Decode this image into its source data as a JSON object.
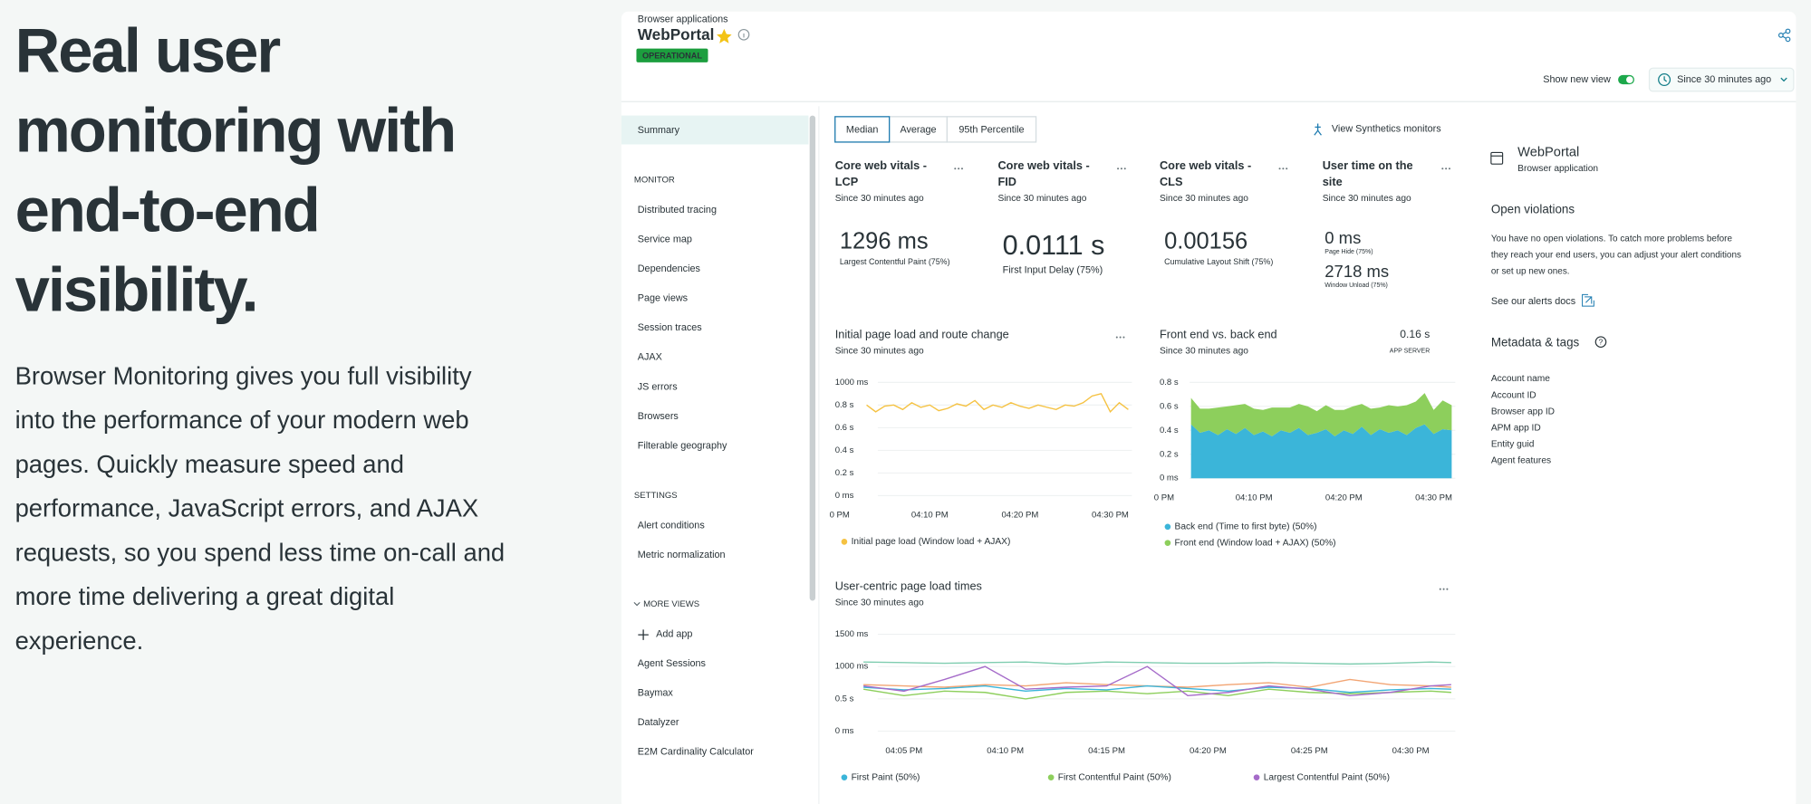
{
  "hero": {
    "title_lines": [
      "Real user",
      "monitoring with",
      "end-to-end",
      "visibility."
    ],
    "description_lines": [
      "Browser Monitoring gives you full visibility",
      "into the performance of your modern web",
      "pages. Quickly measure speed and",
      "performance, JavaScript errors, and AJAX",
      "requests, so you spend less time on-call and",
      "more time delivering a great digital",
      "experience."
    ]
  },
  "app": {
    "breadcrumb": "Browser applications",
    "name": "WebPortal",
    "status": "OPERATIONAL",
    "show_new_view": "Show new view",
    "time_range": "Since 30 minutes ago"
  },
  "sidebar": {
    "summary": "Summary",
    "sections": [
      {
        "title": "MONITOR",
        "items": [
          "Distributed tracing",
          "Service map",
          "Dependencies",
          "Page views",
          "Session traces",
          "AJAX",
          "JS errors",
          "Browsers",
          "Filterable geography"
        ]
      },
      {
        "title": "SETTINGS",
        "items": [
          "Alert conditions",
          "Metric normalization"
        ]
      },
      {
        "title": "MORE VIEWS",
        "items": [
          "Add app",
          "Agent Sessions",
          "Baymax",
          "Datalyzer",
          "E2M Cardinality Calculator"
        ]
      }
    ]
  },
  "tabs": [
    "Median",
    "Average",
    "95th Percentile"
  ],
  "synthetics_link": "View Synthetics monitors",
  "vitals": [
    {
      "title_lines": [
        "Core web vitals -",
        "LCP"
      ],
      "subtitle": "Since 30 minutes ago",
      "metrics": [
        {
          "value": "1296 ms",
          "caption": "Largest Contentful Paint (75%)"
        }
      ]
    },
    {
      "title_lines": [
        "Core web vitals -",
        "FID"
      ],
      "subtitle": "Since 30 minutes ago",
      "metrics": [
        {
          "value": "0.0111 s",
          "caption": "First Input Delay (75%)"
        }
      ]
    },
    {
      "title_lines": [
        "Core web vitals -",
        "CLS"
      ],
      "subtitle": "Since 30 minutes ago",
      "metrics": [
        {
          "value": "0.00156",
          "caption": "Cumulative Layout Shift (75%)"
        }
      ]
    },
    {
      "title_lines": [
        "User time on the",
        "site"
      ],
      "subtitle": "Since 30 minutes ago",
      "metrics": [
        {
          "value": "0 ms",
          "caption": "Page Hide (75%)"
        },
        {
          "value": "2718 ms",
          "caption": "Window Unload (75%)"
        }
      ]
    }
  ],
  "chart_data": [
    {
      "type": "line",
      "title": "Initial page load and route change",
      "subtitle": "Since 30 minutes ago",
      "xlim": [
        -0.5,
        32.4
      ],
      "ylim": [
        0,
        1
      ],
      "xticks": [
        {
          "value": 0,
          "label": "0 PM"
        },
        {
          "value": 10,
          "label": "04:10 PM"
        },
        {
          "value": 20,
          "label": "04:20 PM"
        },
        {
          "value": 30,
          "label": "04:30 PM"
        }
      ],
      "yticks": [
        {
          "value": 1,
          "label": "1000 ms"
        },
        {
          "value": 0.8,
          "label": "0.8 s"
        },
        {
          "value": 0.6,
          "label": "0.6 s"
        },
        {
          "value": 0.4,
          "label": "0.4 s"
        },
        {
          "value": 0.2,
          "label": "0.2 s"
        },
        {
          "value": 0,
          "label": "0 ms"
        }
      ],
      "x": [
        3,
        4,
        5,
        6,
        7,
        8,
        9,
        10,
        11,
        12,
        13,
        14,
        15,
        16,
        17,
        18,
        19,
        20,
        21,
        22,
        23,
        24,
        25,
        26,
        27,
        28,
        29,
        30,
        31,
        32
      ],
      "series": [
        {
          "name": "Initial page load (Window load + AJAX)",
          "color": "#f5c242",
          "values": [
            0.8,
            0.74,
            0.79,
            0.8,
            0.76,
            0.82,
            0.78,
            0.8,
            0.75,
            0.77,
            0.81,
            0.79,
            0.84,
            0.76,
            0.8,
            0.78,
            0.82,
            0.79,
            0.77,
            0.8,
            0.78,
            0.76,
            0.8,
            0.79,
            0.82,
            0.88,
            0.9,
            0.74,
            0.82,
            0.76
          ]
        }
      ]
    },
    {
      "type": "area",
      "title": "Front end vs. back end",
      "subtitle": "Since 30 minutes ago",
      "annotation": {
        "value": "0.16 s",
        "label": "APP SERVER"
      },
      "xlim": [
        -0.5,
        32.4
      ],
      "ylim": [
        0,
        0.8
      ],
      "xticks": [
        {
          "value": 0,
          "label": "0 PM"
        },
        {
          "value": 10,
          "label": "04:10 PM"
        },
        {
          "value": 20,
          "label": "04:20 PM"
        },
        {
          "value": 30,
          "label": "04:30 PM"
        }
      ],
      "yticks": [
        {
          "value": 0.8,
          "label": "0.8 s"
        },
        {
          "value": 0.6,
          "label": "0.6 s"
        },
        {
          "value": 0.4,
          "label": "0.4 s"
        },
        {
          "value": 0.2,
          "label": "0.2 s"
        },
        {
          "value": 0,
          "label": "0 ms"
        }
      ],
      "x": [
        3,
        4,
        5,
        6,
        7,
        8,
        9,
        10,
        11,
        12,
        13,
        14,
        15,
        16,
        17,
        18,
        19,
        20,
        21,
        22,
        23,
        24,
        25,
        26,
        27,
        28,
        29,
        30,
        31,
        32
      ],
      "series": [
        {
          "name": "Back end (Time to first byte) (50%)",
          "color": "#3bb5d9",
          "values": [
            0.45,
            0.38,
            0.4,
            0.36,
            0.41,
            0.37,
            0.42,
            0.36,
            0.39,
            0.35,
            0.4,
            0.38,
            0.42,
            0.36,
            0.38,
            0.41,
            0.35,
            0.4,
            0.37,
            0.43,
            0.36,
            0.41,
            0.38,
            0.4,
            0.36,
            0.42,
            0.45,
            0.37,
            0.41,
            0.4
          ]
        },
        {
          "name": "Front end (Window load + AJAX) (50%)",
          "color": "#8dcf5c",
          "values": [
            0.22,
            0.2,
            0.18,
            0.23,
            0.19,
            0.24,
            0.2,
            0.22,
            0.18,
            0.24,
            0.19,
            0.21,
            0.2,
            0.24,
            0.18,
            0.2,
            0.22,
            0.17,
            0.23,
            0.19,
            0.22,
            0.18,
            0.23,
            0.2,
            0.25,
            0.22,
            0.26,
            0.2,
            0.24,
            0.21
          ]
        }
      ]
    },
    {
      "type": "line",
      "title": "User-centric page load times",
      "subtitle": "Since 30 minutes ago",
      "xlim": [
        1.6,
        32.2
      ],
      "ylim": [
        0,
        1.5
      ],
      "xticks": [
        {
          "value": 5,
          "label": "04:05 PM"
        },
        {
          "value": 10,
          "label": "04:10 PM"
        },
        {
          "value": 15,
          "label": "04:15 PM"
        },
        {
          "value": 20,
          "label": "04:20 PM"
        },
        {
          "value": 25,
          "label": "04:25 PM"
        },
        {
          "value": 30,
          "label": "04:30 PM"
        }
      ],
      "yticks": [
        {
          "value": 1.5,
          "label": "1500 ms"
        },
        {
          "value": 1,
          "label": "1000 ms"
        },
        {
          "value": 0.5,
          "label": "0.5 s"
        },
        {
          "value": 0,
          "label": "0 ms"
        }
      ],
      "x": [
        3,
        5,
        7,
        9,
        11,
        13,
        15,
        17,
        19,
        21,
        23,
        25,
        27,
        29,
        31,
        32
      ],
      "series": [
        {
          "color": "#7fcdb0",
          "values": [
            1.07,
            1.06,
            1.05,
            1.06,
            1.07,
            1.04,
            1.07,
            1.06,
            1.05,
            1.05,
            1.06,
            1.05,
            1.04,
            1.05,
            1.07,
            1.06
          ]
        },
        {
          "color": "#f2a574",
          "values": [
            0.72,
            0.7,
            0.68,
            0.72,
            0.7,
            0.75,
            0.72,
            0.7,
            0.68,
            0.72,
            0.75,
            0.68,
            0.8,
            0.72,
            0.7,
            0.68
          ]
        },
        {
          "name": "First Paint (50%)",
          "color": "#3bb5d9",
          "values": [
            0.68,
            0.64,
            0.66,
            0.7,
            0.62,
            0.66,
            0.64,
            0.7,
            0.66,
            0.62,
            0.68,
            0.66,
            0.6,
            0.64,
            0.66,
            0.65
          ]
        },
        {
          "name": "First Contentful Paint (50%)",
          "color": "#8dcf5c",
          "values": [
            0.65,
            0.55,
            0.62,
            0.6,
            0.5,
            0.6,
            0.62,
            0.58,
            0.62,
            0.55,
            0.65,
            0.6,
            0.58,
            0.6,
            0.62,
            0.6
          ]
        },
        {
          "name": "Largest Contentful Paint (50%)",
          "color": "#a56bc9",
          "values": [
            0.7,
            0.62,
            0.8,
            1.0,
            0.65,
            0.68,
            0.7,
            1.0,
            0.55,
            0.6,
            0.7,
            0.65,
            0.55,
            0.6,
            0.7,
            0.72
          ]
        }
      ]
    }
  ],
  "side_panel": {
    "name": "WebPortal",
    "type": "Browser application",
    "violations_title": "Open violations",
    "violations_lines": [
      "You have no open violations. To catch more problems before",
      "they reach your end users, you can adjust your alert conditions",
      "or set up new ones."
    ],
    "alerts_link": "See our alerts docs",
    "metadata_title": "Metadata & tags",
    "metadata_items": [
      "Account name",
      "Account ID",
      "Browser app ID",
      "APM app ID",
      "Entity guid",
      "Agent features"
    ]
  }
}
